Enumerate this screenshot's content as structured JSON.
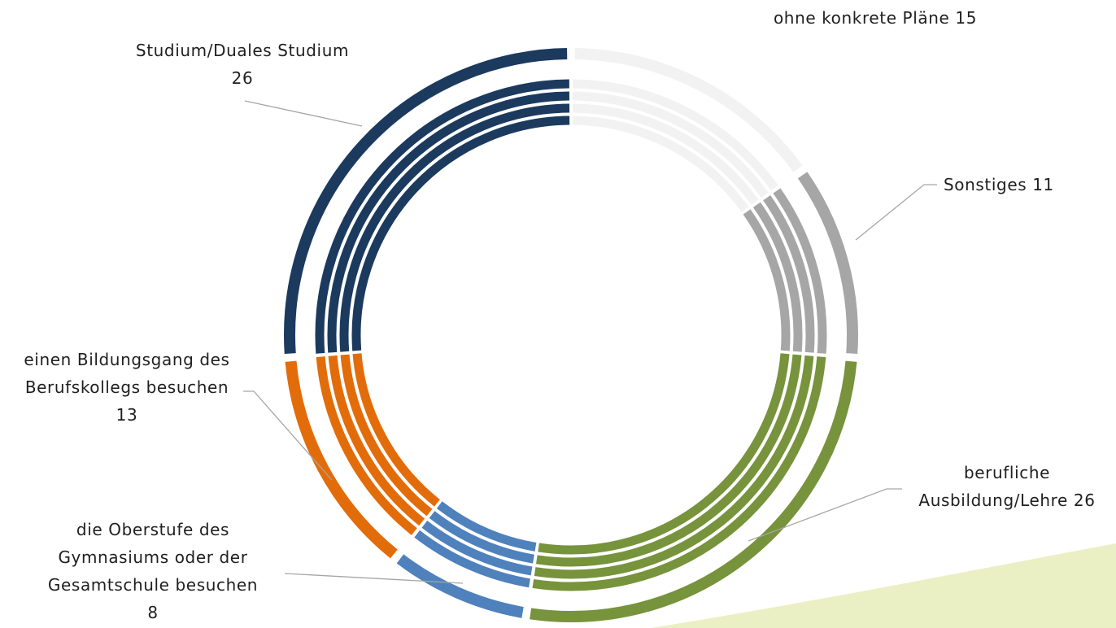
{
  "chart_data": {
    "type": "donut",
    "title": "",
    "series": [
      {
        "values": [
          26,
          13,
          8,
          26,
          11,
          15
        ]
      },
      {
        "values": [
          26,
          13,
          8,
          26,
          11,
          15
        ]
      },
      {
        "values": [
          26,
          13,
          8,
          26,
          11,
          15
        ]
      },
      {
        "values": [
          26,
          13,
          8,
          26,
          11,
          15
        ]
      },
      {
        "values": [
          26,
          13,
          8,
          26,
          11,
          15
        ]
      }
    ],
    "categories": [
      {
        "key": "studium",
        "name": "Studium/Duales Studium",
        "color": "#1b3a5e",
        "label_lines": [
          "Studium/Duales Studium",
          "26"
        ]
      },
      {
        "key": "berufskolleg",
        "name": "einen Bildungsgang des Berufskollegs besuchen",
        "color": "#e36c0a",
        "label_lines": [
          "einen Bildungsgang des",
          "Berufskollegs besuchen",
          "13"
        ]
      },
      {
        "key": "oberstufe",
        "name": "die Oberstufe des Gymnasiums oder der Gesamtschule besuchen",
        "color": "#4f81bd",
        "label_lines": [
          "die Oberstufe des",
          "Gymnasiums oder der",
          "Gesamtschule besuchen",
          "8"
        ]
      },
      {
        "key": "ausbildung",
        "name": "berufliche Ausbildung/Lehre",
        "color": "#77933c",
        "label_lines": [
          "berufliche",
          "Ausbildung/Lehre 26"
        ]
      },
      {
        "key": "sonstiges",
        "name": "Sonstiges",
        "color": "#a6a6a6",
        "label_lines": [
          "Sonstiges 11"
        ]
      },
      {
        "key": "ohne",
        "name": "ohne konkrete Pläne",
        "color": "#f2f2f2",
        "label_lines": [
          "ohne konkrete Pläne 15"
        ]
      }
    ]
  },
  "decor": {
    "swoosh_color": "#ebf0c4"
  }
}
